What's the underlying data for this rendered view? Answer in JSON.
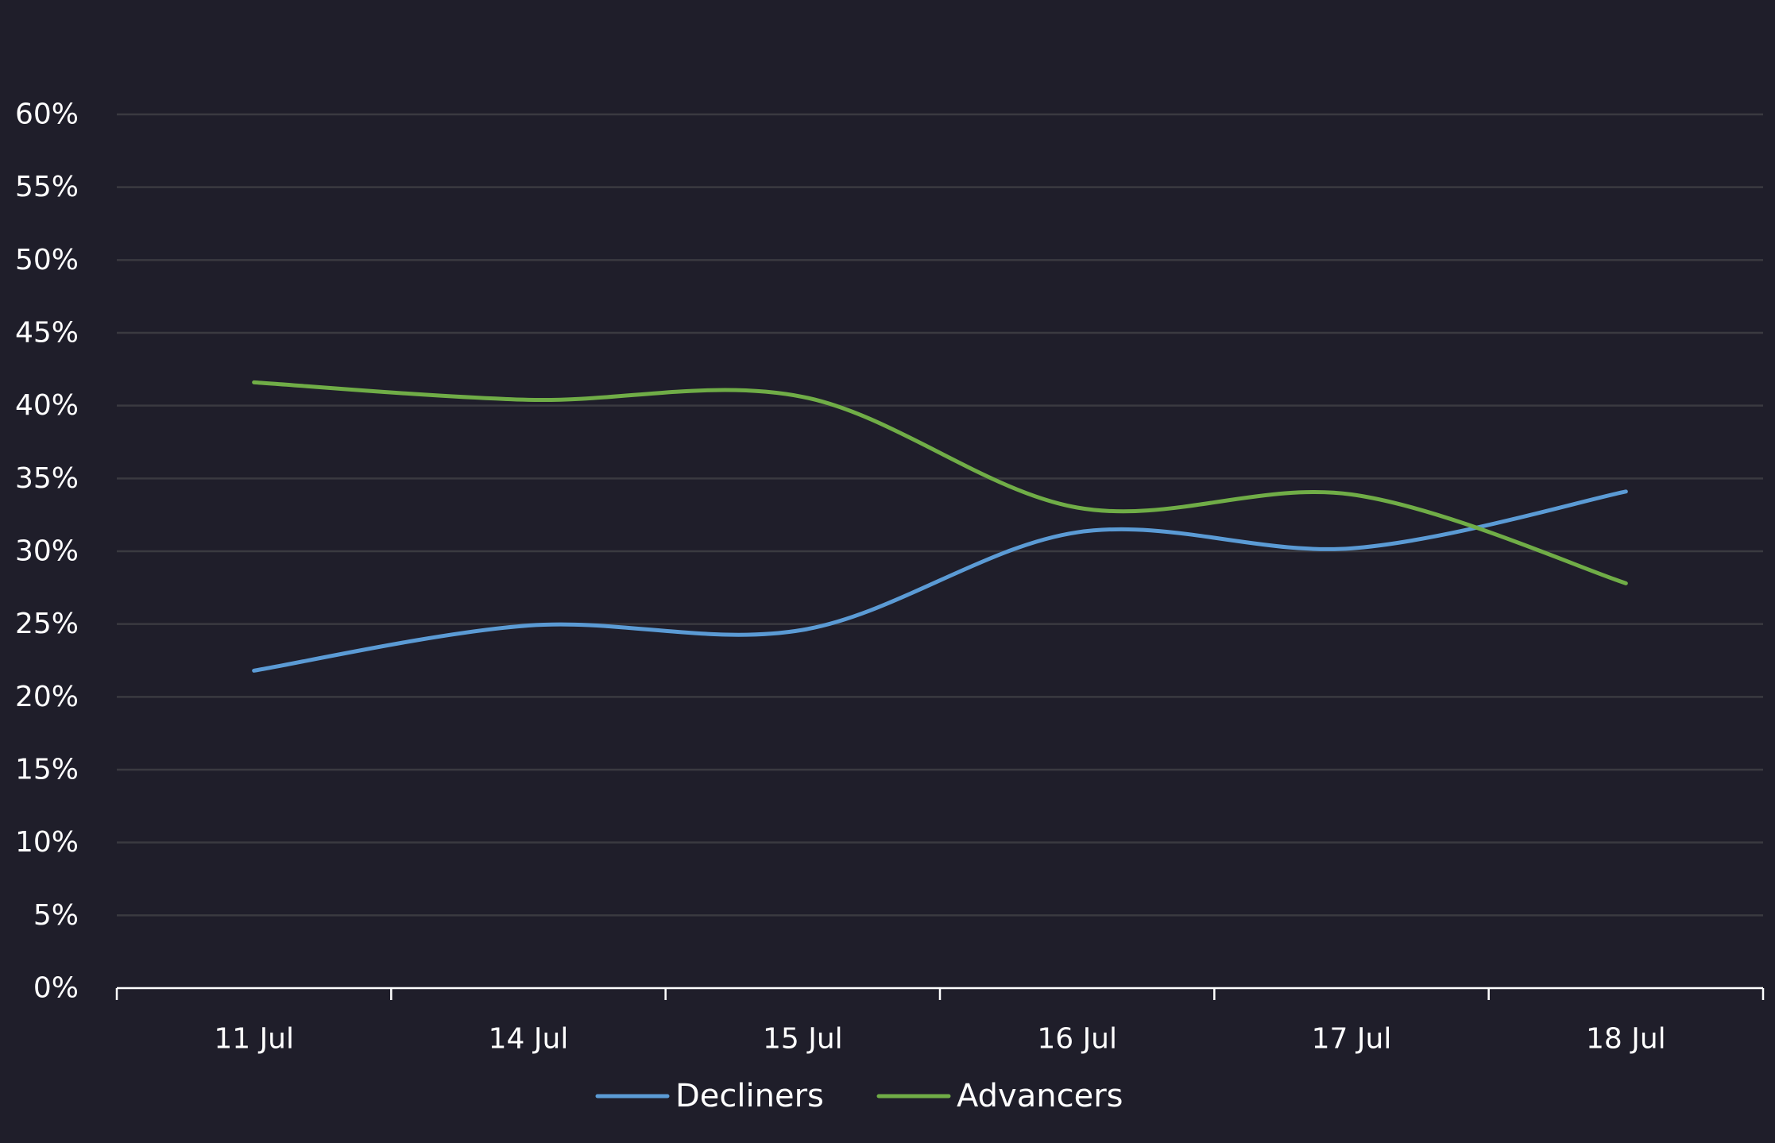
{
  "chart_data": {
    "type": "line",
    "title": "",
    "xlabel": "",
    "ylabel": "",
    "categories": [
      "11 Jul",
      "14 Jul",
      "15 Jul",
      "16 Jul",
      "17 Jul",
      "18 Jul"
    ],
    "series": [
      {
        "name": "Decliners",
        "color": "#5b9bd5",
        "values": [
          21.8,
          24.9,
          24.6,
          31.3,
          30.2,
          34.1
        ]
      },
      {
        "name": "Advancers",
        "color": "#70ad47",
        "values": [
          41.6,
          40.4,
          40.6,
          33.0,
          33.9,
          27.8
        ]
      }
    ],
    "ylim": [
      0,
      60
    ],
    "yticks": [
      {
        "value": 0,
        "label": "0%"
      },
      {
        "value": 5,
        "label": "5%"
      },
      {
        "value": 10,
        "label": "10%"
      },
      {
        "value": 15,
        "label": "15%"
      },
      {
        "value": 20,
        "label": "20%"
      },
      {
        "value": 25,
        "label": "25%"
      },
      {
        "value": 30,
        "label": "30%"
      },
      {
        "value": 35,
        "label": "35%"
      },
      {
        "value": 40,
        "label": "40%"
      },
      {
        "value": 45,
        "label": "45%"
      },
      {
        "value": 50,
        "label": "50%"
      },
      {
        "value": 55,
        "label": "55%"
      },
      {
        "value": 60,
        "label": "60%"
      }
    ],
    "grid": true,
    "smooth": true,
    "legend_position": "bottom-center",
    "colors": {
      "background": "#1f1e2a",
      "gridline": "#3a3a40",
      "axis": "#ffffff",
      "text": "#ffffff"
    }
  }
}
